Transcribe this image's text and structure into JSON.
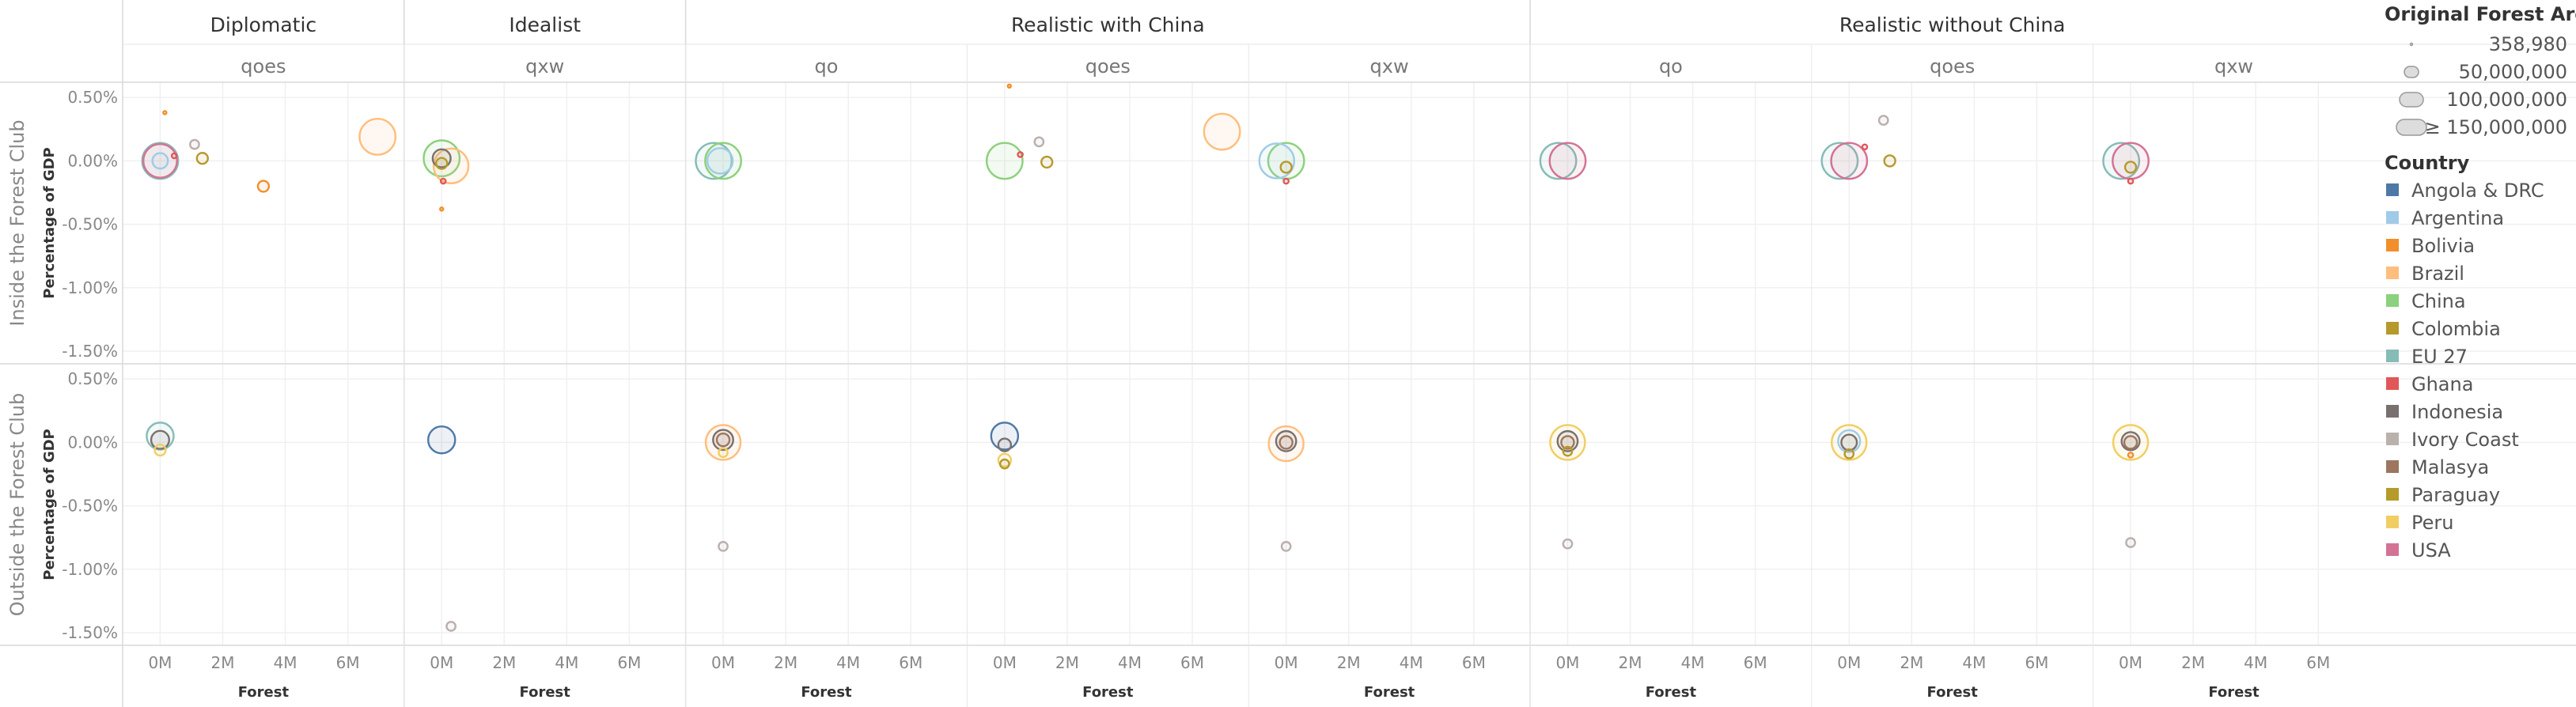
{
  "chart_data": {
    "type": "scatter",
    "scenarios": [
      {
        "name": "Diplomatic",
        "measures": [
          "qoes"
        ]
      },
      {
        "name": "Idealist",
        "measures": [
          "qxw"
        ]
      },
      {
        "name": "Realistic with China",
        "measures": [
          "qo",
          "qoes",
          "qxw"
        ]
      },
      {
        "name": "Realistic without China",
        "measures": [
          "qo",
          "qoes",
          "qxw"
        ]
      }
    ],
    "rows": [
      "Inside the Forest Club",
      "Outside the Forest Club"
    ],
    "ylabel": "Percentage of GDP",
    "xlabel": "Forest",
    "x_ticks": [
      0,
      2000000,
      4000000,
      6000000
    ],
    "x_tick_labels": [
      "0M",
      "2M",
      "4M",
      "6M"
    ],
    "xlim": [
      -1200000,
      7800000
    ],
    "y_ticks": [
      0.5,
      0,
      -0.5,
      -1.0,
      -1.5
    ],
    "y_tick_labels": [
      "0.50%",
      "0.00%",
      "-0.50%",
      "-1.00%",
      "-1.50%"
    ],
    "ylim": [
      -1.6,
      0.62
    ],
    "grid": true,
    "legend_size": {
      "title": "Original Forest Area",
      "entries": [
        {
          "label": "358,980",
          "value": 358980
        },
        {
          "label": "50,000,000",
          "value": 50000000
        },
        {
          "label": "100,000,000",
          "value": 100000000
        },
        {
          "label": "≥ 150,000,000",
          "value": 150000000
        }
      ]
    },
    "legend_color": {
      "title": "Country",
      "entries": [
        {
          "name": "Angola & DRC",
          "color": "#4e79a7"
        },
        {
          "name": "Argentina",
          "color": "#a0cbe8"
        },
        {
          "name": "Bolivia",
          "color": "#f28e2b"
        },
        {
          "name": "Brazil",
          "color": "#ffbe7d"
        },
        {
          "name": "China",
          "color": "#8cd17d"
        },
        {
          "name": "Colombia",
          "color": "#b6992d"
        },
        {
          "name": "EU 27",
          "color": "#86bcb6"
        },
        {
          "name": "Ghana",
          "color": "#e15759"
        },
        {
          "name": "Indonesia",
          "color": "#79706e"
        },
        {
          "name": "Ivory Coast",
          "color": "#bab0ac"
        },
        {
          "name": "Malasya",
          "color": "#9d7660"
        },
        {
          "name": "Paraguay",
          "color": "#b59b2a"
        },
        {
          "name": "Peru",
          "color": "#f1ce63"
        },
        {
          "name": "USA",
          "color": "#d37295"
        }
      ]
    },
    "panels": [
      {
        "scenario": "Diplomatic",
        "measure": "qoes",
        "row": 0,
        "points": [
          {
            "country": "EU 27",
            "x": 0,
            "y": 0.0,
            "area": 160000000
          },
          {
            "country": "USA",
            "x": 0,
            "y": 0.0,
            "area": 140000000
          },
          {
            "country": "Argentina",
            "x": 0,
            "y": 0.0,
            "area": 30000000
          },
          {
            "country": "Bolivia",
            "x": 150000,
            "y": 0.38,
            "area": 500000
          },
          {
            "country": "Ivory Coast",
            "x": 1100000,
            "y": 0.13,
            "area": 10000000
          },
          {
            "country": "Colombia",
            "x": 1350000,
            "y": 0.02,
            "area": 15000000
          },
          {
            "country": "Ghana",
            "x": 450000,
            "y": 0.04,
            "area": 3000000
          },
          {
            "country": "Bolivia",
            "x": 3300000,
            "y": -0.2,
            "area": 15000000
          },
          {
            "country": "Brazil",
            "x": 6950000,
            "y": 0.19,
            "area": 160000000
          }
        ]
      },
      {
        "scenario": "Idealist",
        "measure": "qxw",
        "row": 0,
        "points": [
          {
            "country": "China",
            "x": 0,
            "y": 0.02,
            "area": 160000000
          },
          {
            "country": "Brazil",
            "x": 300000,
            "y": -0.04,
            "area": 150000000
          },
          {
            "country": "Indonesia",
            "x": 0,
            "y": 0.02,
            "area": 40000000
          },
          {
            "country": "Colombia",
            "x": 0,
            "y": -0.02,
            "area": 15000000
          },
          {
            "country": "Ghana",
            "x": 50000,
            "y": -0.16,
            "area": 3000000
          },
          {
            "country": "Bolivia",
            "x": 0,
            "y": -0.38,
            "area": 500000
          }
        ]
      },
      {
        "scenario": "Realistic with China",
        "measure": "qo",
        "row": 0,
        "points": [
          {
            "country": "EU 27",
            "x": -300000,
            "y": 0.0,
            "area": 160000000
          },
          {
            "country": "China",
            "x": 0,
            "y": 0.0,
            "area": 160000000
          },
          {
            "country": "Argentina",
            "x": -100000,
            "y": 0.0,
            "area": 80000000
          }
        ]
      },
      {
        "scenario": "Realistic with China",
        "measure": "qoes",
        "row": 0,
        "points": [
          {
            "country": "China",
            "x": 0,
            "y": 0.0,
            "area": 160000000
          },
          {
            "country": "Bolivia",
            "x": 150000,
            "y": 0.59,
            "area": 500000
          },
          {
            "country": "Ivory Coast",
            "x": 1100000,
            "y": 0.15,
            "area": 10000000
          },
          {
            "country": "Colombia",
            "x": 1350000,
            "y": -0.01,
            "area": 15000000
          },
          {
            "country": "Ghana",
            "x": 500000,
            "y": 0.05,
            "area": 3000000
          },
          {
            "country": "Brazil",
            "x": 6950000,
            "y": 0.23,
            "area": 160000000
          }
        ]
      },
      {
        "scenario": "Realistic with China",
        "measure": "qxw",
        "row": 0,
        "points": [
          {
            "country": "Argentina",
            "x": -300000,
            "y": 0.0,
            "area": 150000000
          },
          {
            "country": "China",
            "x": 0,
            "y": 0.0,
            "area": 160000000
          },
          {
            "country": "Colombia",
            "x": 0,
            "y": -0.05,
            "area": 15000000
          },
          {
            "country": "Ghana",
            "x": 0,
            "y": -0.16,
            "area": 3000000
          }
        ]
      },
      {
        "scenario": "Realistic without China",
        "measure": "qo",
        "row": 0,
        "points": [
          {
            "country": "EU 27",
            "x": -300000,
            "y": 0.0,
            "area": 160000000
          },
          {
            "country": "USA",
            "x": 0,
            "y": 0.0,
            "area": 160000000
          }
        ]
      },
      {
        "scenario": "Realistic without China",
        "measure": "qoes",
        "row": 0,
        "points": [
          {
            "country": "EU 27",
            "x": -300000,
            "y": 0.0,
            "area": 160000000
          },
          {
            "country": "USA",
            "x": 0,
            "y": 0.0,
            "area": 160000000
          },
          {
            "country": "Ivory Coast",
            "x": 1100000,
            "y": 0.32,
            "area": 10000000
          },
          {
            "country": "Ghana",
            "x": 500000,
            "y": 0.11,
            "area": 3000000
          },
          {
            "country": "Colombia",
            "x": 1300000,
            "y": 0.0,
            "area": 15000000
          }
        ]
      },
      {
        "scenario": "Realistic without China",
        "measure": "qxw",
        "row": 0,
        "points": [
          {
            "country": "EU 27",
            "x": -300000,
            "y": 0.0,
            "area": 160000000
          },
          {
            "country": "USA",
            "x": 0,
            "y": 0.0,
            "area": 160000000
          },
          {
            "country": "Colombia",
            "x": 0,
            "y": -0.05,
            "area": 15000000
          },
          {
            "country": "Ghana",
            "x": 0,
            "y": -0.16,
            "area": 3000000
          }
        ]
      },
      {
        "scenario": "Diplomatic",
        "measure": "qoes",
        "row": 1,
        "points": [
          {
            "country": "EU 27",
            "x": 0,
            "y": 0.05,
            "area": 90000000
          },
          {
            "country": "Indonesia",
            "x": 0,
            "y": 0.02,
            "area": 40000000
          },
          {
            "country": "Peru",
            "x": 0,
            "y": -0.06,
            "area": 15000000
          }
        ]
      },
      {
        "scenario": "Idealist",
        "measure": "qxw",
        "row": 1,
        "points": [
          {
            "country": "Angola & DRC",
            "x": 0,
            "y": 0.02,
            "area": 90000000
          },
          {
            "country": "Ivory Coast",
            "x": 300000,
            "y": -1.45,
            "area": 10000000
          }
        ]
      },
      {
        "scenario": "Realistic with China",
        "measure": "qo",
        "row": 1,
        "points": [
          {
            "country": "Brazil",
            "x": 0,
            "y": 0.0,
            "area": 150000000
          },
          {
            "country": "Indonesia",
            "x": 0,
            "y": 0.02,
            "area": 50000000
          },
          {
            "country": "Malasya",
            "x": 0,
            "y": 0.02,
            "area": 20000000
          },
          {
            "country": "Peru",
            "x": 0,
            "y": -0.08,
            "area": 10000000
          },
          {
            "country": "Ivory Coast",
            "x": 0,
            "y": -0.82,
            "area": 10000000
          }
        ]
      },
      {
        "scenario": "Realistic with China",
        "measure": "qoes",
        "row": 1,
        "points": [
          {
            "country": "Angola & DRC",
            "x": 0,
            "y": 0.05,
            "area": 90000000
          },
          {
            "country": "Indonesia",
            "x": 0,
            "y": -0.02,
            "area": 20000000
          },
          {
            "country": "Peru",
            "x": 0,
            "y": -0.14,
            "area": 20000000
          },
          {
            "country": "Colombia",
            "x": 0,
            "y": -0.17,
            "area": 10000000
          }
        ]
      },
      {
        "scenario": "Realistic with China",
        "measure": "qxw",
        "row": 1,
        "points": [
          {
            "country": "Brazil",
            "x": 0,
            "y": -0.01,
            "area": 150000000
          },
          {
            "country": "Indonesia",
            "x": 0,
            "y": 0.01,
            "area": 50000000
          },
          {
            "country": "Malasya",
            "x": 0,
            "y": 0.0,
            "area": 20000000
          },
          {
            "country": "Ivory Coast",
            "x": 0,
            "y": -0.82,
            "area": 10000000
          }
        ]
      },
      {
        "scenario": "Realistic without China",
        "measure": "qo",
        "row": 1,
        "points": [
          {
            "country": "Peru",
            "x": 0,
            "y": 0.0,
            "area": 150000000
          },
          {
            "country": "Indonesia",
            "x": 0,
            "y": 0.01,
            "area": 50000000
          },
          {
            "country": "Malasya",
            "x": 0,
            "y": 0.0,
            "area": 20000000
          },
          {
            "country": "Colombia",
            "x": 0,
            "y": -0.07,
            "area": 10000000
          },
          {
            "country": "Ivory Coast",
            "x": 0,
            "y": -0.8,
            "area": 10000000
          }
        ]
      },
      {
        "scenario": "Realistic without China",
        "measure": "qoes",
        "row": 1,
        "points": [
          {
            "country": "Peru",
            "x": 0,
            "y": 0.0,
            "area": 150000000
          },
          {
            "country": "Argentina",
            "x": 0,
            "y": 0.01,
            "area": 60000000
          },
          {
            "country": "Indonesia",
            "x": 0,
            "y": 0.0,
            "area": 30000000
          },
          {
            "country": "Colombia",
            "x": 0,
            "y": -0.09,
            "area": 10000000
          }
        ]
      },
      {
        "scenario": "Realistic without China",
        "measure": "qxw",
        "row": 1,
        "points": [
          {
            "country": "Peru",
            "x": 0,
            "y": 0.0,
            "area": 150000000
          },
          {
            "country": "Indonesia",
            "x": 0,
            "y": 0.01,
            "area": 40000000
          },
          {
            "country": "Malasya",
            "x": 0,
            "y": 0.0,
            "area": 20000000
          },
          {
            "country": "Bolivia",
            "x": 0,
            "y": -0.1,
            "area": 3000000
          },
          {
            "country": "Ivory Coast",
            "x": 0,
            "y": -0.79,
            "area": 10000000
          }
        ]
      }
    ]
  }
}
